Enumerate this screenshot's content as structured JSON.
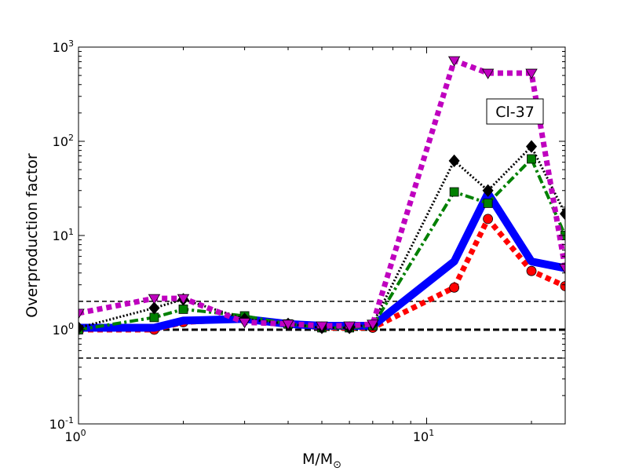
{
  "chart_data": {
    "type": "line",
    "title": "",
    "annotation": "Cl-37",
    "xlabel": "M/M",
    "xlabel_sub": "⊙",
    "ylabel": "Overproduction factor",
    "xscale": "log",
    "yscale": "log",
    "xlim": [
      1,
      25
    ],
    "ylim": [
      0.1,
      1000
    ],
    "x_ticks": [
      {
        "value": 1,
        "base": "10",
        "exp": "0"
      },
      {
        "value": 10,
        "base": "10",
        "exp": "1"
      }
    ],
    "y_ticks": [
      {
        "value": 0.1,
        "base": "10",
        "exp": "-1"
      },
      {
        "value": 1,
        "base": "10",
        "exp": "0"
      },
      {
        "value": 10,
        "base": "10",
        "exp": "1"
      },
      {
        "value": 100,
        "base": "10",
        "exp": "2"
      },
      {
        "value": 1000,
        "base": "10",
        "exp": "3"
      }
    ],
    "reference_lines": [
      0.5,
      1,
      2
    ],
    "grid": false,
    "legend": "none",
    "series": [
      {
        "color": "#ff0000",
        "style": "dotted-thick",
        "marker": "circle",
        "x": [
          1,
          1.65,
          2,
          3,
          4,
          5,
          6,
          7,
          12,
          15,
          20,
          25
        ],
        "y": [
          1.0,
          1.0,
          1.2,
          1.3,
          1.15,
          1.05,
          1.05,
          1.05,
          2.8,
          15,
          4.2,
          2.9
        ]
      },
      {
        "color": "#0000ff",
        "style": "solid-thick",
        "marker": "none",
        "x": [
          1,
          1.65,
          2,
          3,
          4,
          5,
          6,
          7,
          12,
          15,
          20,
          25
        ],
        "y": [
          1.05,
          1.05,
          1.25,
          1.3,
          1.15,
          1.1,
          1.1,
          1.1,
          5.3,
          28,
          5.3,
          4.5
        ]
      },
      {
        "color": "#008000",
        "style": "dashdot",
        "marker": "square",
        "x": [
          1,
          1.65,
          2,
          3,
          4,
          5,
          6,
          7,
          12,
          15,
          20,
          25
        ],
        "y": [
          1.0,
          1.35,
          1.65,
          1.4,
          1.15,
          1.05,
          1.05,
          1.1,
          29,
          22,
          65,
          10
        ]
      },
      {
        "color": "#000000",
        "style": "dotted",
        "marker": "diamond",
        "x": [
          1,
          1.65,
          2,
          3,
          4,
          5,
          6,
          7,
          12,
          15,
          20,
          25
        ],
        "y": [
          1.05,
          1.7,
          2.1,
          1.3,
          1.15,
          1.05,
          1.05,
          1.15,
          62,
          30,
          88,
          17
        ]
      },
      {
        "color": "#bf00bf",
        "style": "dotted-thick",
        "marker": "triangle-down",
        "x": [
          1,
          1.65,
          2,
          3,
          4,
          5,
          6,
          7,
          12,
          15,
          20,
          25
        ],
        "y": [
          1.5,
          2.15,
          2.15,
          1.2,
          1.15,
          1.1,
          1.1,
          1.15,
          720,
          530,
          530,
          4.5
        ]
      }
    ]
  }
}
